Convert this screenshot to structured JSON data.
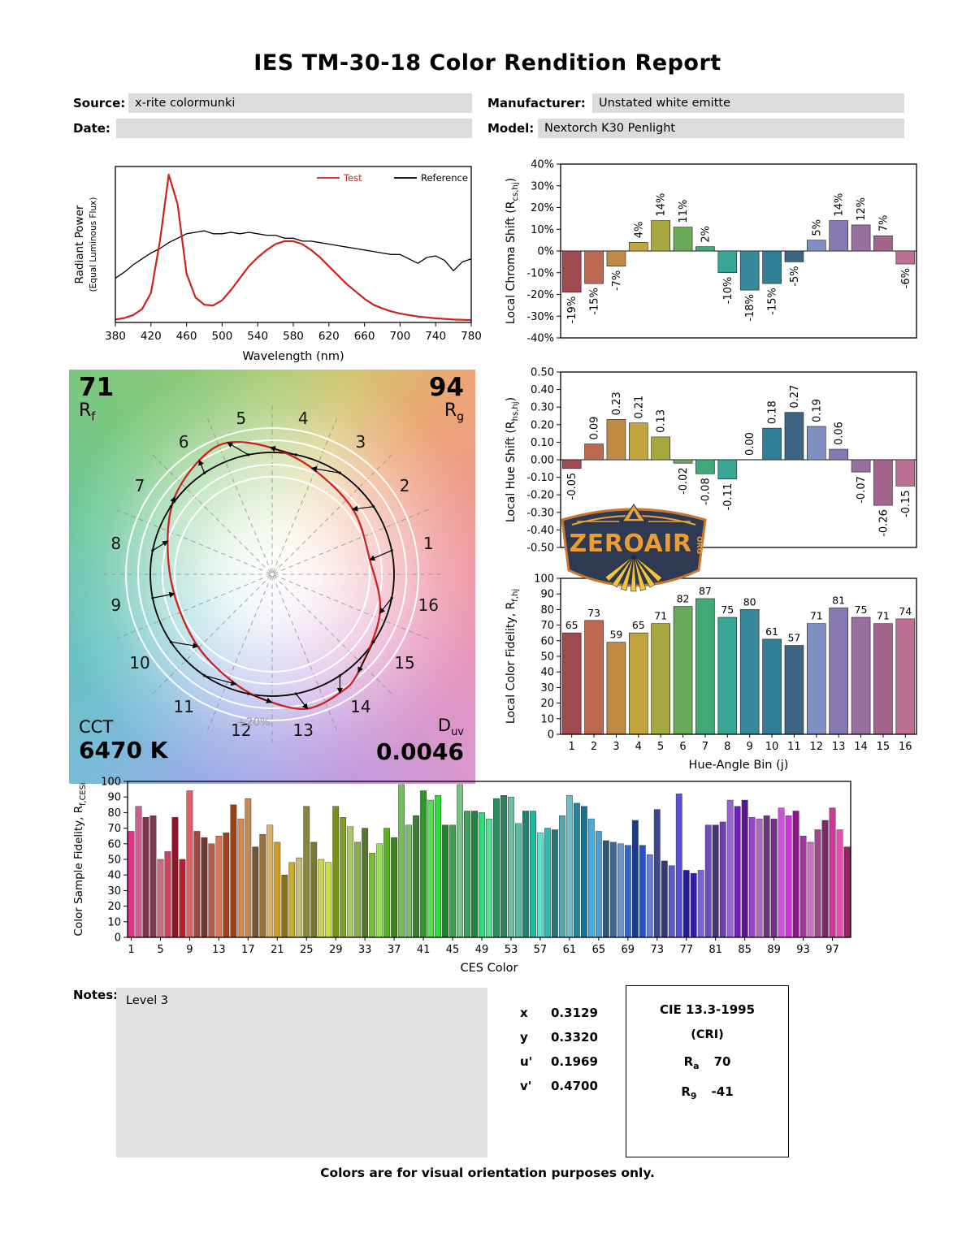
{
  "title": "IES TM-30-18 Color Rendition Report",
  "header": {
    "source_label": "Source:",
    "source_value": "x-rite colormunki",
    "date_label": "Date:",
    "date_value": "",
    "manufacturer_label": "Manufacturer:",
    "manufacturer_value": "Unstated white emitte",
    "model_label": "Model:",
    "model_value": "Nextorch K30 Penlight"
  },
  "colors": {
    "test": "#cc2222",
    "reference": "#000000",
    "logo_navy": "#2e3a52",
    "logo_orange": "#ec9c35",
    "logo_yellow": "#f4c43c",
    "bin_colors": [
      "#9e4a4e",
      "#bd6952",
      "#c08a45",
      "#c1a53c",
      "#a8a841",
      "#6aa85a",
      "#43a878",
      "#3aa495",
      "#35899b",
      "#2f7e95",
      "#3c6582",
      "#7e90c2",
      "#8678b0",
      "#986f9e",
      "#a3648e",
      "#bc7095"
    ]
  },
  "chart_data": [
    {
      "id": "spd",
      "type": "line",
      "xlabel": "Wavelength (nm)",
      "ylabel_line1": "Radiant Power",
      "ylabel_line2": "(Equal Luminous Flux)",
      "xlim": [
        380,
        780
      ],
      "xticks": [
        380,
        420,
        460,
        500,
        540,
        580,
        620,
        660,
        700,
        740,
        780
      ],
      "x_start": 380,
      "x_step": 10,
      "legend": [
        {
          "label": "Test",
          "color": "#cc2222"
        },
        {
          "label": "Reference",
          "color": "#000000"
        }
      ],
      "series": [
        {
          "name": "Test",
          "color": "#cc2222",
          "values": [
            0.02,
            0.03,
            0.05,
            0.09,
            0.2,
            0.55,
            1.0,
            0.8,
            0.33,
            0.17,
            0.12,
            0.115,
            0.15,
            0.22,
            0.3,
            0.38,
            0.44,
            0.49,
            0.53,
            0.55,
            0.55,
            0.53,
            0.49,
            0.44,
            0.38,
            0.32,
            0.26,
            0.21,
            0.16,
            0.12,
            0.095,
            0.075,
            0.06,
            0.05,
            0.04,
            0.034,
            0.028,
            0.024,
            0.02,
            0.018,
            0.016
          ]
        },
        {
          "name": "Reference",
          "color": "#000000",
          "values": [
            0.3,
            0.34,
            0.39,
            0.43,
            0.47,
            0.5,
            0.54,
            0.57,
            0.6,
            0.61,
            0.62,
            0.6,
            0.6,
            0.61,
            0.6,
            0.61,
            0.6,
            0.59,
            0.59,
            0.57,
            0.57,
            0.55,
            0.55,
            0.54,
            0.53,
            0.52,
            0.51,
            0.5,
            0.49,
            0.48,
            0.47,
            0.46,
            0.46,
            0.43,
            0.4,
            0.44,
            0.45,
            0.42,
            0.35,
            0.41,
            0.43
          ]
        }
      ]
    },
    {
      "id": "chroma_shift",
      "type": "bar",
      "ylabel_pre": "Local Chroma Shift (R",
      "ylabel_sub": "cs,hj",
      "ylabel_post": ")",
      "ylim": [
        -0.4,
        0.4
      ],
      "ytick_step": 0.1,
      "ytick_format": "percent",
      "categories": [
        1,
        2,
        3,
        4,
        5,
        6,
        7,
        8,
        9,
        10,
        11,
        12,
        13,
        14,
        15,
        16
      ],
      "values": [
        -0.19,
        -0.15,
        -0.07,
        0.04,
        0.14,
        0.11,
        0.02,
        -0.1,
        -0.18,
        -0.15,
        -0.05,
        0.05,
        0.14,
        0.12,
        0.07,
        -0.06
      ],
      "bar_labels": [
        "-19%",
        "-15%",
        "-7%",
        "4%",
        "14%",
        "11%",
        "2%",
        "-10%",
        "-18%",
        "-15%",
        "-5%",
        "5%",
        "14%",
        "12%",
        "7%",
        "-6%"
      ]
    },
    {
      "id": "hue_shift",
      "type": "bar",
      "ylabel_pre": "Local Hue Shift (R",
      "ylabel_sub": "hs,hj",
      "ylabel_post": ")",
      "ylim": [
        -0.5,
        0.5
      ],
      "ytick_step": 0.1,
      "ytick_format": "dec2",
      "categories": [
        1,
        2,
        3,
        4,
        5,
        6,
        7,
        8,
        9,
        10,
        11,
        12,
        13,
        14,
        15,
        16
      ],
      "values": [
        -0.05,
        0.09,
        0.23,
        0.21,
        0.13,
        -0.02,
        -0.08,
        -0.11,
        0.0,
        0.18,
        0.27,
        0.19,
        0.06,
        -0.07,
        -0.26,
        -0.15
      ],
      "bar_labels": [
        "-0.05",
        "0.09",
        "0.23",
        "0.21",
        "0.13",
        "-0.02",
        "-0.08",
        "-0.11",
        "0.00",
        "0.18",
        "0.27",
        "0.19",
        "0.06",
        "-0.07",
        "-0.26",
        "-0.15"
      ]
    },
    {
      "id": "local_fidelity",
      "type": "bar",
      "ylabel_pre": "Local Color Fidelity, R",
      "ylabel_sub": "f,hj",
      "ylabel_post": "",
      "xlabel": "Hue-Angle Bin (j)",
      "ylim": [
        0,
        100
      ],
      "ytick_step": 10,
      "ytick_format": "int",
      "categories": [
        1,
        2,
        3,
        4,
        5,
        6,
        7,
        8,
        9,
        10,
        11,
        12,
        13,
        14,
        15,
        16
      ],
      "values": [
        65,
        73,
        59,
        65,
        71,
        82,
        87,
        75,
        80,
        61,
        57,
        71,
        81,
        75,
        71,
        74
      ],
      "bar_labels": [
        "65",
        "73",
        "59",
        "65",
        "71",
        "82",
        "87",
        "75",
        "80",
        "61",
        "57",
        "71",
        "81",
        "75",
        "71",
        "74"
      ]
    },
    {
      "id": "ces_fidelity",
      "type": "bar",
      "ylabel_pre": "Color Sample Fidelity, R",
      "ylabel_sub": "f,CESi",
      "ylabel_post": "",
      "xlabel": "CES Color",
      "ylim": [
        0,
        100
      ],
      "ytick_step": 10,
      "ytick_format": "int",
      "xticks": [
        1,
        5,
        9,
        13,
        17,
        21,
        25,
        29,
        33,
        37,
        41,
        45,
        49,
        53,
        57,
        61,
        65,
        69,
        73,
        77,
        81,
        85,
        89,
        93,
        97
      ],
      "values": [
        68,
        84,
        77,
        78,
        50,
        55,
        77,
        50,
        94,
        68,
        64,
        60,
        65,
        67,
        85,
        76,
        89,
        58,
        66,
        72,
        61,
        40,
        48,
        51,
        84,
        61,
        50,
        48,
        84,
        77,
        71,
        61,
        70,
        54,
        60,
        70,
        64,
        98,
        72,
        78,
        94,
        88,
        91,
        72,
        72,
        98,
        81,
        81,
        80,
        76,
        89,
        91,
        90,
        73,
        81,
        81,
        67,
        70,
        69,
        78,
        91,
        86,
        84,
        76,
        68,
        62,
        61,
        60,
        59,
        75,
        59,
        53,
        82,
        49,
        46,
        92,
        43,
        41,
        43,
        72,
        72,
        74,
        88,
        84,
        88,
        77,
        76,
        78,
        76,
        83,
        78,
        81,
        65,
        61,
        69,
        75,
        83,
        69,
        58
      ]
    },
    {
      "id": "color_vector_graphic",
      "type": "cvg",
      "rf": "71",
      "rg": "94",
      "cct": "6470 K",
      "duv": "0.0046",
      "ring_label": "+20%",
      "bins": [
        1,
        2,
        3,
        4,
        5,
        6,
        7,
        8,
        9,
        10,
        11,
        12,
        13,
        14,
        15,
        16
      ],
      "chroma_shift": [
        -0.19,
        -0.15,
        -0.07,
        0.04,
        0.14,
        0.11,
        0.02,
        -0.1,
        -0.18,
        -0.15,
        -0.05,
        0.05,
        0.14,
        0.12,
        0.07,
        -0.06
      ],
      "hue_shift": [
        -0.05,
        0.09,
        0.23,
        0.21,
        0.13,
        -0.02,
        -0.08,
        -0.11,
        0.0,
        0.18,
        0.27,
        0.19,
        0.06,
        -0.07,
        -0.26,
        -0.15
      ]
    }
  ],
  "cvg_labels": {
    "rf_value": "71",
    "rf_main": "R",
    "rf_sub": "f",
    "rg_value": "94",
    "rg_main": "R",
    "rg_sub": "g",
    "cct_label": "CCT",
    "cct_value": "6470 K",
    "duv_main": "D",
    "duv_sub": "uv",
    "duv_value": "0.0046",
    "ring_label": "+20%"
  },
  "logo": {
    "name": "ZEROAIR",
    "org": "ORG"
  },
  "notes": {
    "label": "Notes:",
    "value": "Level 3"
  },
  "chromaticity": {
    "rows": [
      {
        "label": "x",
        "value": "0.3129"
      },
      {
        "label": "y",
        "value": "0.3320"
      },
      {
        "label": "u'",
        "value": "0.1969"
      },
      {
        "label": "v'",
        "value": "0.4700"
      }
    ]
  },
  "cri": {
    "title": "CIE 13.3-1995",
    "subtitle": "(CRI)",
    "ra_main": "R",
    "ra_sub": "a",
    "ra_value": "70",
    "r9_main": "R",
    "r9_sub": "9",
    "r9_value": "-41"
  },
  "footer": "Colors are for visual orientation purposes only."
}
